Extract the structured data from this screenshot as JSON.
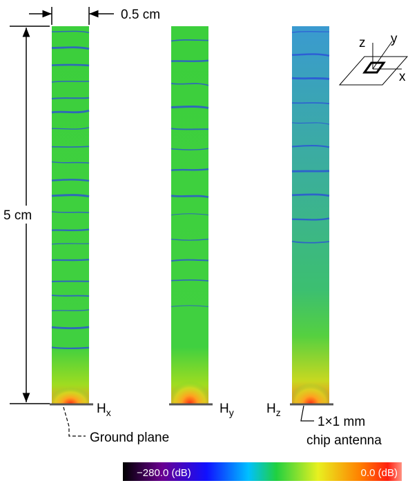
{
  "dimensions": {
    "width_label": "0.5 cm",
    "height_label": "5 cm"
  },
  "panels": [
    {
      "label": "H",
      "subscript": "x"
    },
    {
      "label": "H",
      "subscript": "y"
    },
    {
      "label": "H",
      "subscript": "z"
    }
  ],
  "annotations": {
    "ground_plane": "Ground plane",
    "antenna_size": "1×1 mm",
    "antenna_name": "chip antenna"
  },
  "axes_icon": {
    "x": "x",
    "y": "y",
    "z": "z"
  },
  "colorbar": {
    "min_label": "−280.0 (dB)",
    "max_label": "0.0 (dB)"
  }
}
